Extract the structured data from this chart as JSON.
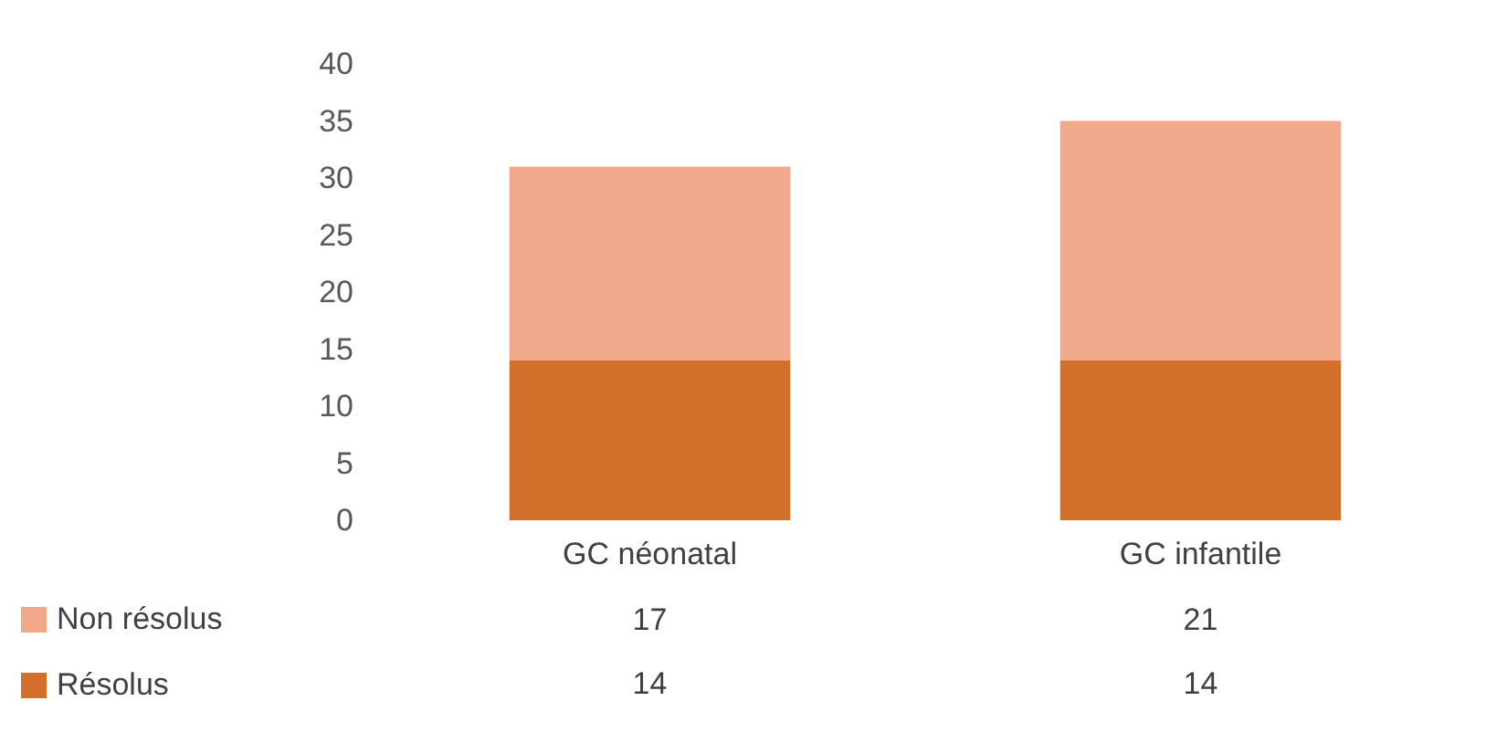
{
  "chart_data": {
    "type": "bar",
    "categories": [
      "GC néonatal",
      "GC infantile"
    ],
    "stacked": true,
    "series": [
      {
        "name": "Résolus",
        "color": "#d26f2a",
        "values": [
          14,
          14
        ]
      },
      {
        "name": "Non résolus",
        "color": "#f0a98b",
        "values": [
          17,
          21
        ]
      }
    ],
    "ylim": [
      0,
      40
    ],
    "yticks": [
      0,
      5,
      10,
      15,
      20,
      25,
      30,
      35,
      40
    ],
    "data_labels": true,
    "legend": "bottom left"
  }
}
